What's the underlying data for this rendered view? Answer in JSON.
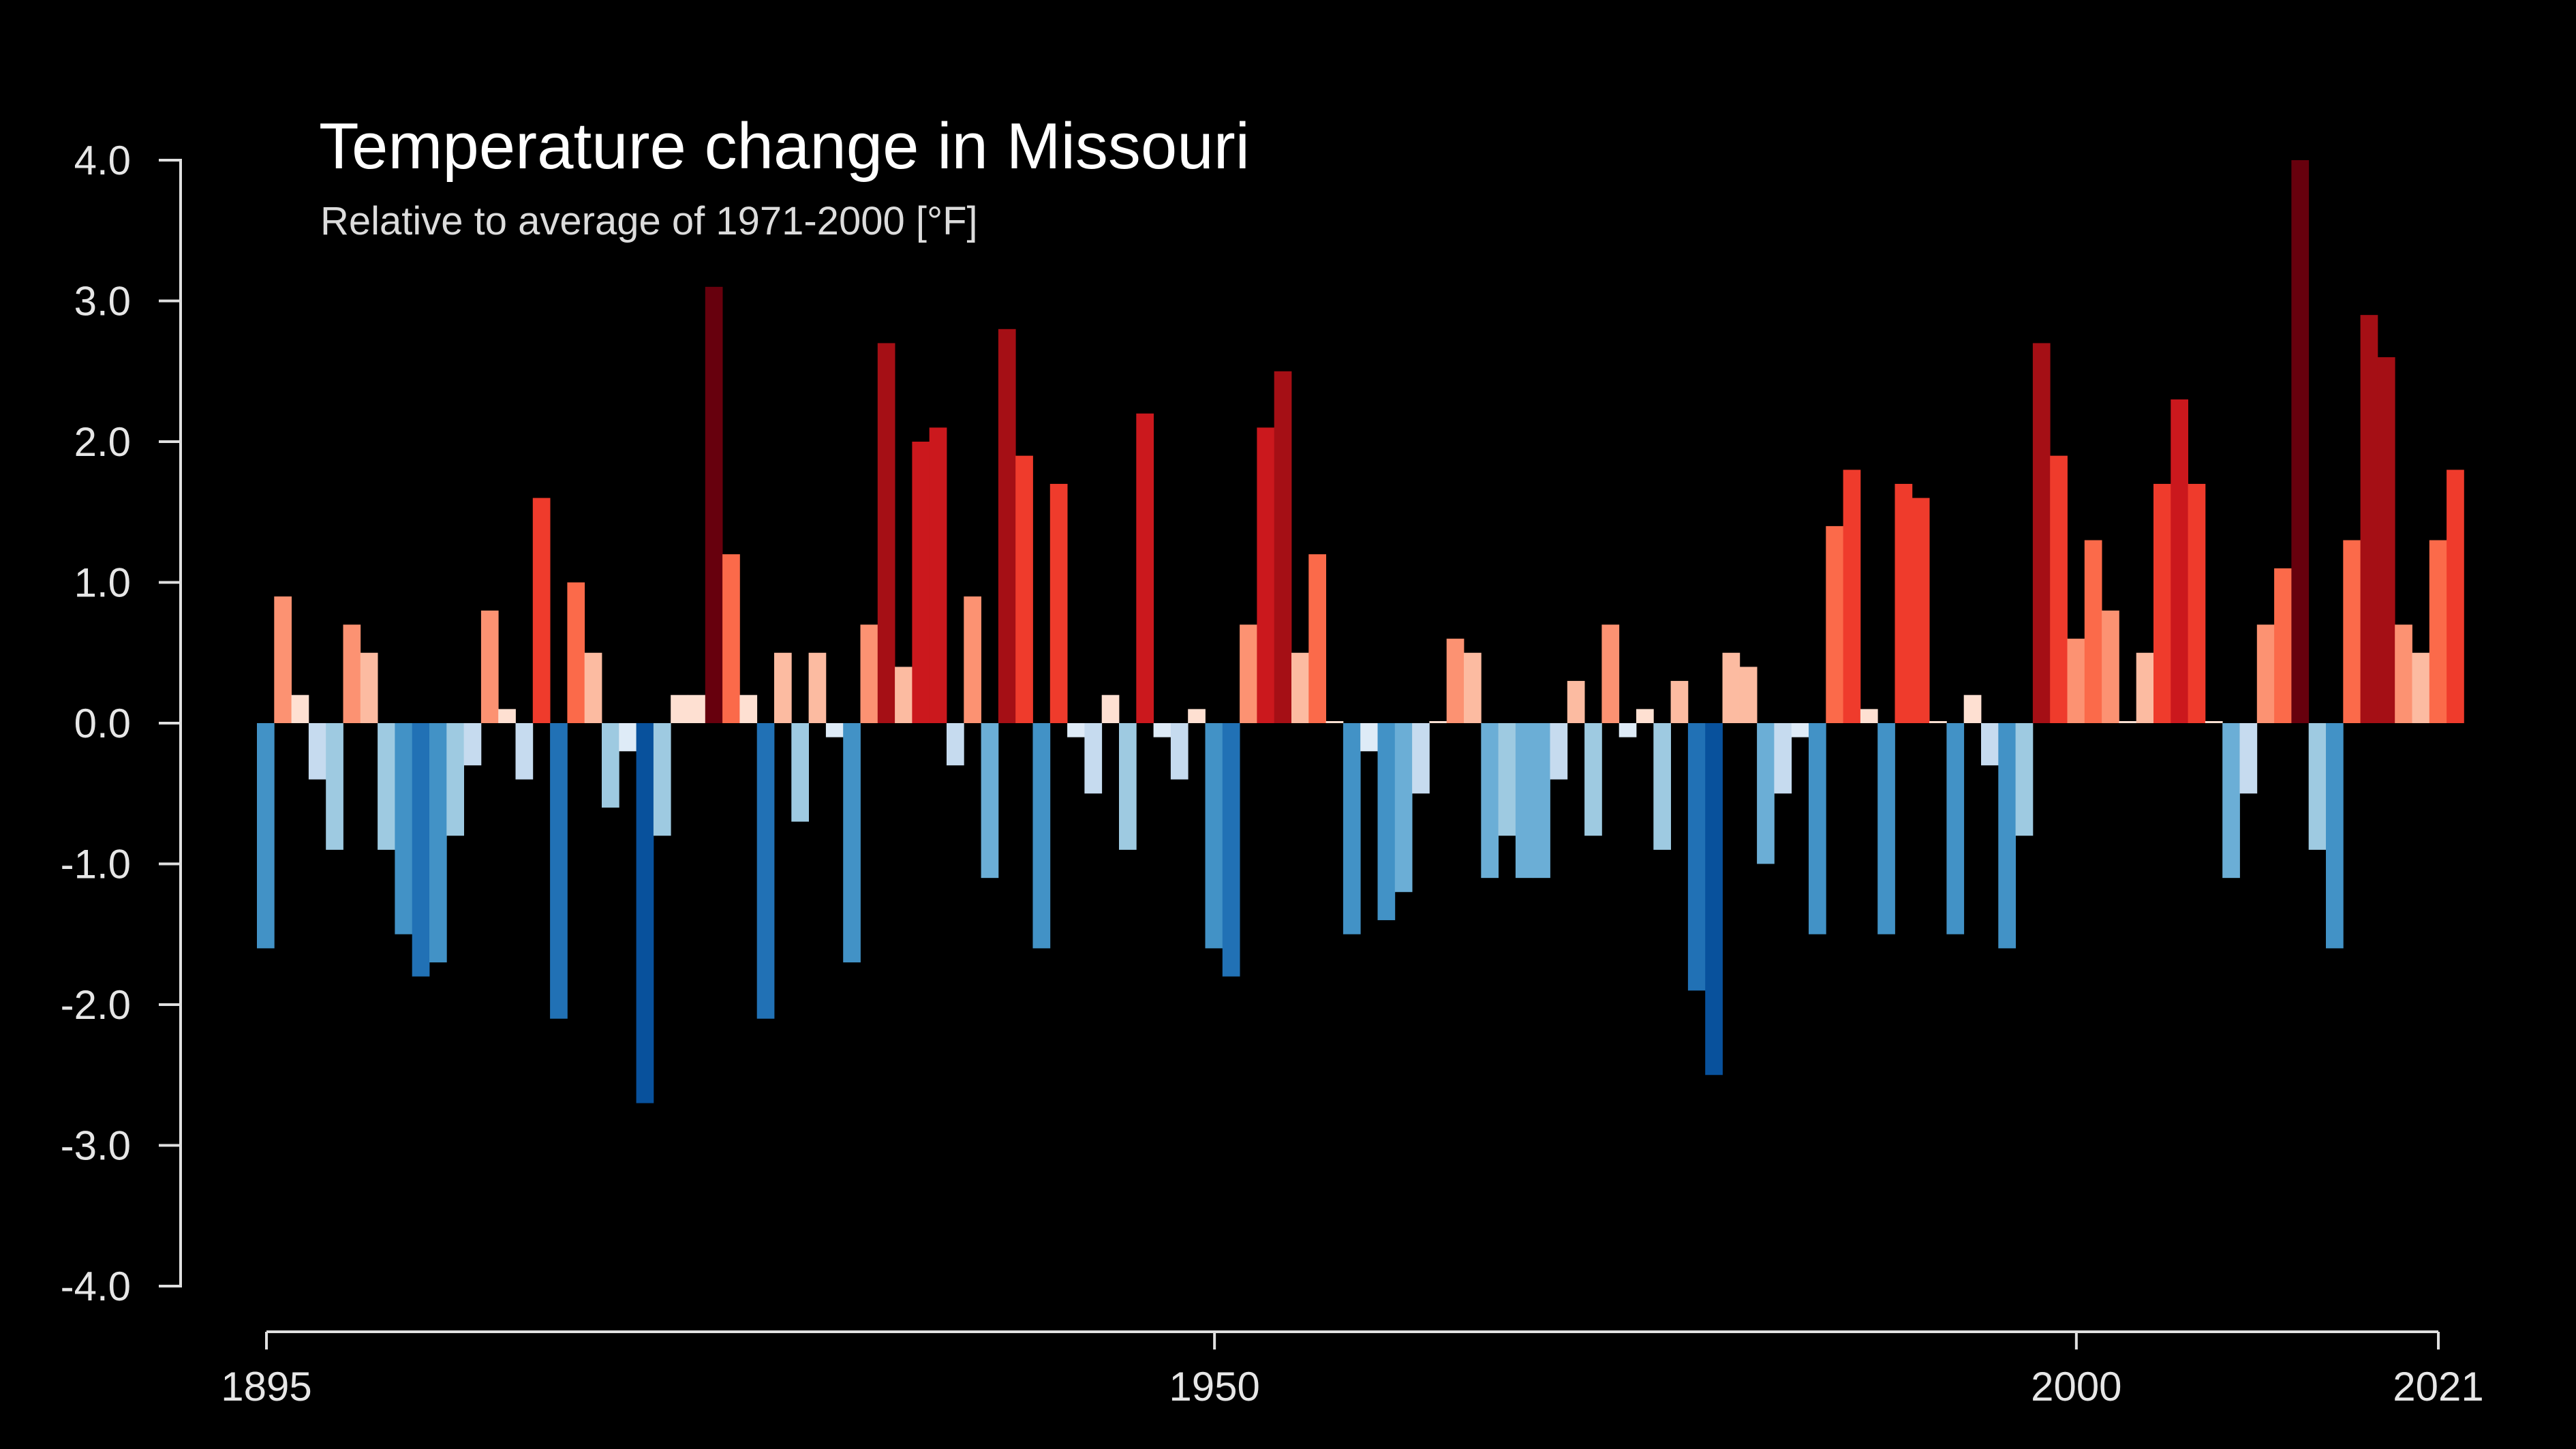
{
  "chart_data": {
    "type": "bar",
    "title": "Temperature change in Missouri",
    "subtitle": "Relative to average of 1971-2000  [°F]",
    "xlabel": "",
    "ylabel": "",
    "x_start": 1895,
    "x_end": 2021,
    "xlim": [
      1895,
      2021
    ],
    "ylim": [
      -4,
      4
    ],
    "y_ticks": [
      4,
      3,
      2,
      1,
      0,
      -1,
      -2,
      -3,
      -4
    ],
    "y_tick_labels": [
      "4.0",
      "3.0",
      "2.0",
      "1.0",
      "0.0",
      "-1.0",
      "-2.0",
      "-3.0",
      "-4.0"
    ],
    "x_ticks": [
      1895,
      1950,
      2000,
      2021
    ],
    "x_tick_labels": [
      "1895",
      "1950",
      "2000",
      "2021"
    ],
    "grid": false,
    "legend": "none",
    "color_scale": [
      "#08306b",
      "#08519c",
      "#2171b5",
      "#4292c6",
      "#6baed6",
      "#9ecae1",
      "#c6dbef",
      "#deebf7",
      "#fee0d2",
      "#fcbba1",
      "#fc9272",
      "#fb6a4a",
      "#ef3b2c",
      "#cb181d",
      "#a50f15",
      "#67000d"
    ],
    "values": [
      -1.6,
      0.9,
      0.2,
      -0.4,
      -0.9,
      0.7,
      0.5,
      -0.9,
      -1.5,
      -1.8,
      -1.7,
      -0.8,
      -0.3,
      0.8,
      0.1,
      -0.4,
      1.6,
      -2.1,
      1.0,
      0.5,
      -0.6,
      -0.2,
      -2.7,
      -0.8,
      0.2,
      0.2,
      3.1,
      1.2,
      0.2,
      -2.1,
      0.5,
      -0.7,
      0.5,
      -0.1,
      -1.7,
      0.7,
      2.7,
      0.4,
      2.0,
      2.1,
      -0.3,
      0.9,
      -1.1,
      2.8,
      1.9,
      -1.6,
      1.7,
      -0.1,
      -0.5,
      0.2,
      -0.9,
      2.2,
      -0.1,
      -0.4,
      0.1,
      -1.6,
      -1.8,
      0.7,
      2.1,
      2.5,
      0.5,
      1.2,
      0.0,
      -1.5,
      -0.2,
      -1.4,
      -1.2,
      -0.5,
      0.0,
      0.6,
      0.5,
      -1.1,
      -0.8,
      -1.1,
      -1.1,
      -0.4,
      0.3,
      -0.8,
      0.7,
      -0.1,
      0.1,
      -0.9,
      0.3,
      -1.9,
      -2.5,
      0.5,
      0.4,
      -1.0,
      -0.5,
      -0.1,
      -1.5,
      1.4,
      1.8,
      0.1,
      -1.5,
      1.7,
      1.6,
      0.0,
      -1.5,
      0.2,
      -0.3,
      -1.6,
      -0.8,
      2.7,
      1.9,
      0.6,
      1.3,
      0.8,
      0.0,
      0.5,
      1.7,
      2.3,
      1.7,
      0.0,
      -1.1,
      -0.5,
      0.7,
      1.1,
      4.0,
      -0.9,
      -1.6,
      1.3,
      2.9,
      2.6,
      0.7,
      0.5,
      1.3,
      1.8
    ]
  }
}
